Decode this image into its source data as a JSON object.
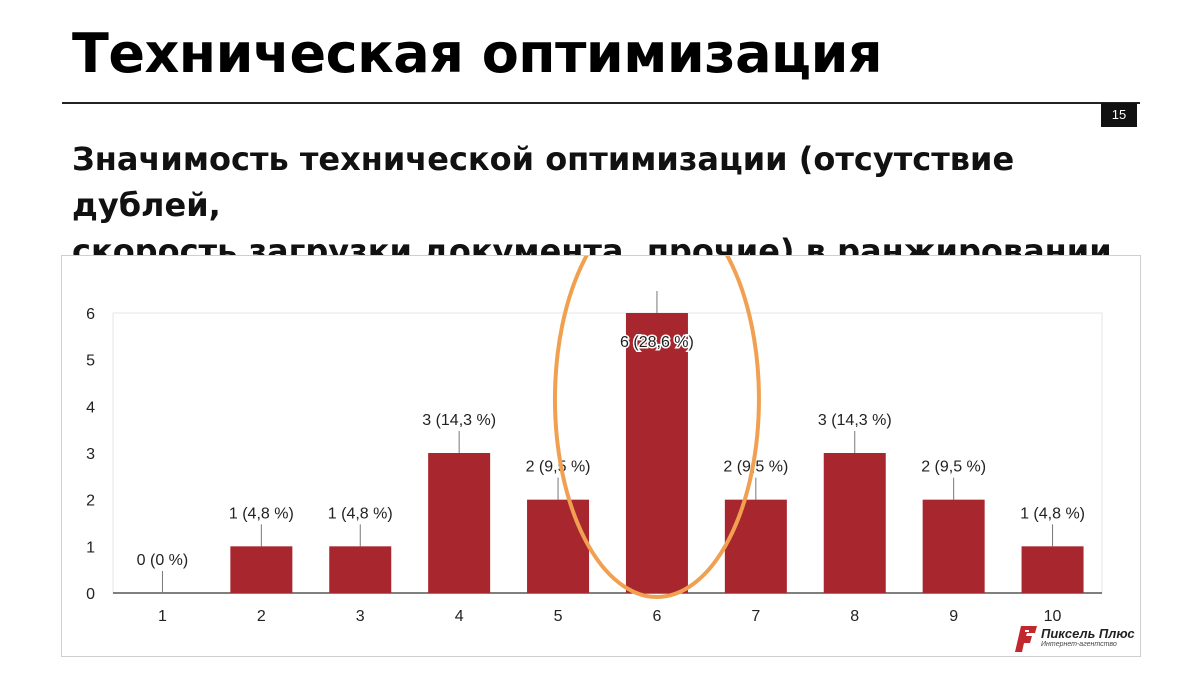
{
  "slide": {
    "title": "Техническая оптимизация",
    "page_number": "15",
    "subtitle_line1": "Значимость технической оптимизации (отсутствие дублей,",
    "subtitle_line2": "скорость загрузки документа, прочие) в ранжировании"
  },
  "logo": {
    "name": "Пиксель Плюс",
    "tagline": "Интернет-агентство",
    "color": "#c0282d"
  },
  "chart_data": {
    "type": "bar",
    "categories": [
      "1",
      "2",
      "3",
      "4",
      "5",
      "6",
      "7",
      "8",
      "9",
      "10"
    ],
    "values": [
      0,
      1,
      1,
      3,
      2,
      6,
      2,
      3,
      2,
      1
    ],
    "data_labels": [
      "0 (0 %)",
      "1 (4,8 %)",
      "1 (4,8 %)",
      "3 (14,3 %)",
      "2 (9,5 %)",
      "6 (28,6 %)",
      "2 (9,5 %)",
      "3 (14,3 %)",
      "2 (9,5 %)",
      "1 (4,8 %)"
    ],
    "y_ticks": [
      "0",
      "1",
      "2",
      "3",
      "4",
      "5",
      "6"
    ],
    "ylim": [
      0,
      6
    ],
    "grid": false,
    "bar_color": "#a8262d",
    "highlight_category": "6",
    "highlight_color": "#f0a050"
  }
}
